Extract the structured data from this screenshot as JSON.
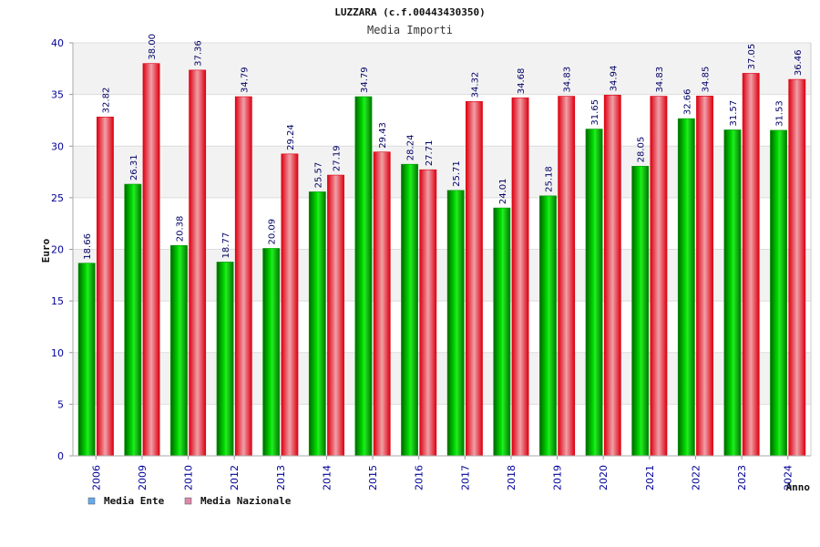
{
  "chart_data": {
    "type": "bar",
    "title": "LUZZARA (c.f.00443430350)",
    "subtitle": "Media Importi",
    "xlabel": "Anno",
    "ylabel": "Euro",
    "ylim": [
      0,
      40
    ],
    "yticks": [
      "0",
      "5",
      "10",
      "15",
      "20",
      "25",
      "30",
      "35",
      "40"
    ],
    "grid": true,
    "legend_position": "bottom-left",
    "categories": [
      "2006",
      "2009",
      "2010",
      "2012",
      "2013",
      "2014",
      "2015",
      "2016",
      "2017",
      "2018",
      "2019",
      "2020",
      "2021",
      "2022",
      "2023",
      "2024"
    ],
    "series": [
      {
        "name": "Media Ente",
        "color": "#00aa00",
        "legend_color": "#66aaee",
        "values": [
          18.66,
          26.31,
          20.38,
          18.77,
          20.09,
          25.57,
          34.79,
          28.24,
          25.71,
          24.01,
          25.18,
          31.65,
          28.05,
          32.66,
          31.57,
          31.53
        ],
        "labels": [
          "18.66",
          "26.31",
          "20.38",
          "18.77",
          "20.09",
          "25.57",
          "34.79",
          "28.24",
          "25.71",
          "24.01",
          "25.18",
          "31.65",
          "28.05",
          "32.66",
          "31.57",
          "31.53"
        ]
      },
      {
        "name": "Media Nazionale",
        "color": "#ee1122",
        "legend_color": "#dd88aa",
        "values": [
          32.82,
          38.0,
          37.36,
          34.79,
          29.24,
          27.19,
          29.43,
          27.71,
          34.32,
          34.68,
          34.83,
          34.94,
          34.83,
          34.85,
          37.05,
          36.46
        ],
        "labels": [
          "32.82",
          "38.00",
          "37.36",
          "34.79",
          "29.24",
          "27.19",
          "29.43",
          "27.71",
          "34.32",
          "34.68",
          "34.83",
          "34.94",
          "34.83",
          "34.85",
          "37.05",
          "36.46"
        ]
      }
    ]
  }
}
